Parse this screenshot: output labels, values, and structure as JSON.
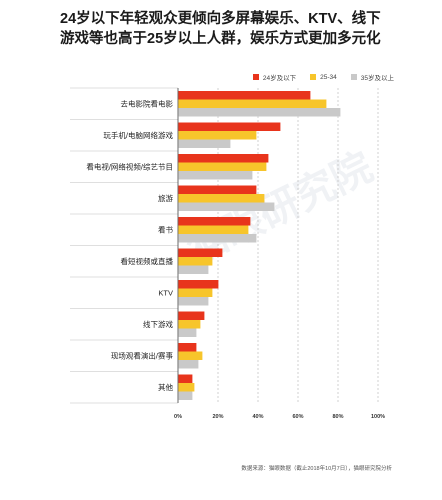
{
  "title_line1": "24岁以下年轻观众更倾向多屏幕娱乐、KTV、线下",
  "title_line2": "游戏等也高于25岁以上人群，娱乐方式更加多元化",
  "source": "数据来源：猫眼数据（截止2018年10月7日），猫眼研究院分析",
  "watermark": "猫眼研究院",
  "colors": {
    "series1": "#e8341c",
    "series2": "#f7c52b",
    "series3": "#c9c9c9",
    "grid": "#bdbdbd",
    "axis": "#444444"
  },
  "chart_data": {
    "type": "bar",
    "orientation": "horizontal",
    "categories": [
      "去电影院看电影",
      "玩手机/电脑网络游戏",
      "看电视/网络视频/综艺节目",
      "旅游",
      "看书",
      "看短视频或直播",
      "KTV",
      "线下游戏",
      "现场观看演出/赛事",
      "其他"
    ],
    "series": [
      {
        "name": "24岁及以下",
        "values": [
          66,
          51,
          45,
          39,
          36,
          22,
          20,
          13,
          9,
          7
        ]
      },
      {
        "name": "25-34",
        "values": [
          74,
          39,
          44,
          43,
          35,
          17,
          17,
          11,
          12,
          8
        ]
      },
      {
        "name": "35岁及以上",
        "values": [
          81,
          26,
          37,
          48,
          39,
          15,
          15,
          9,
          10,
          7
        ]
      }
    ],
    "xlim": [
      0,
      100
    ],
    "xticks": [
      "0%",
      "20%",
      "40%",
      "60%",
      "80%",
      "100%"
    ],
    "grid": true,
    "legend_position": "top-right"
  }
}
